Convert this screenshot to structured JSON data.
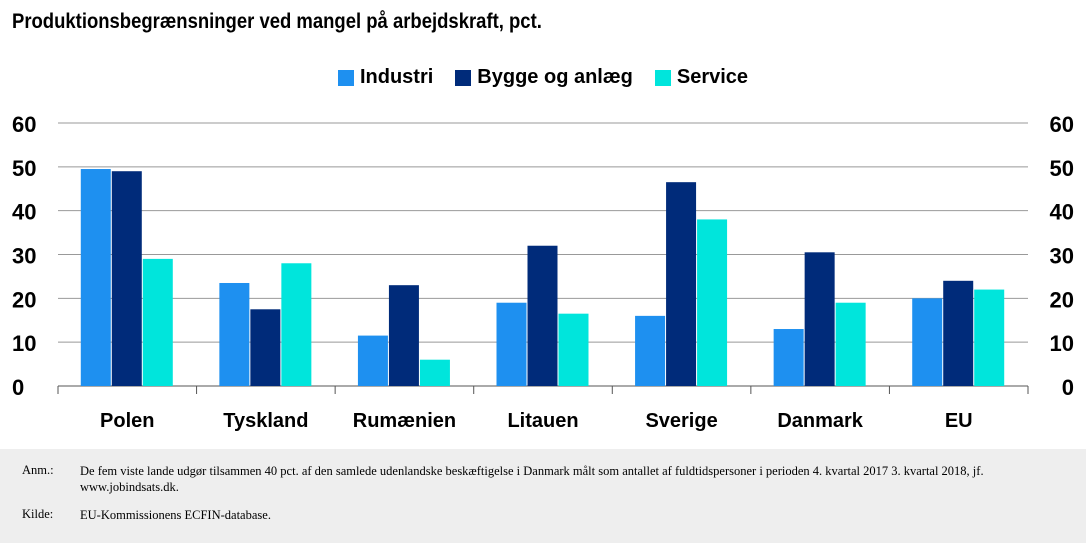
{
  "title": "Produktionsbegrænsninger ved mangel på arbejdskraft, pct.",
  "chart_data": {
    "type": "bar",
    "title": "Produktionsbegrænsninger ved mangel på arbejdskraft, pct.",
    "categories": [
      "Polen",
      "Tyskland",
      "Rumænien",
      "Litauen",
      "Sverige",
      "Danmark",
      "EU"
    ],
    "series": [
      {
        "name": "Industri",
        "color": "#1e90f0",
        "values": [
          49.5,
          23.5,
          11.5,
          19,
          16,
          13,
          20
        ]
      },
      {
        "name": "Bygge og anlæg",
        "color": "#002b7a",
        "values": [
          49,
          17.5,
          23,
          32,
          46.5,
          30.5,
          24
        ]
      },
      {
        "name": "Service",
        "color": "#00e5dc",
        "values": [
          29,
          28,
          6,
          16.5,
          38,
          19,
          22
        ]
      }
    ],
    "y_ticks": [
      "0",
      "10",
      "20",
      "30",
      "40",
      "50",
      "60"
    ],
    "ylim": [
      0,
      60
    ],
    "grid": true,
    "legend_position": "top-center",
    "secondary_axis": true
  },
  "notes": {
    "anm_label": "Anm.:",
    "anm_text": "De fem viste lande udgør tilsammen 40 pct. af den samlede udenlandske beskæftigelse i Danmark målt som antallet af fuldtidspersoner i perioden 4. kvartal 2017 3. kvartal 2018, jf. www.jobindsats.dk.",
    "kilde_label": "Kilde:",
    "kilde_text": "EU-Kommissionens ECFIN-database."
  }
}
